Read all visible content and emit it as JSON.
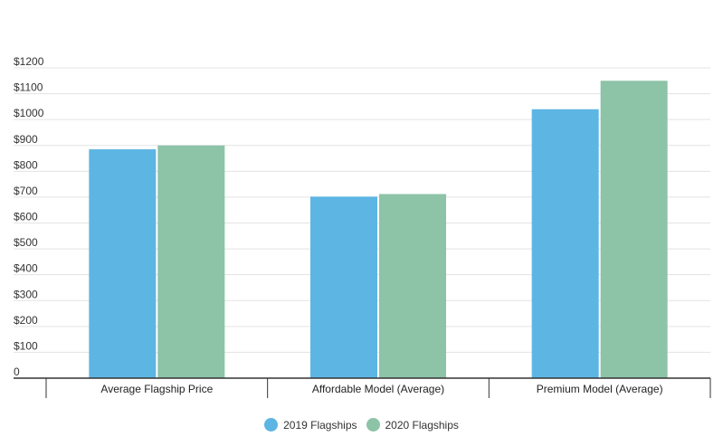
{
  "chart_data": {
    "type": "bar",
    "categories": [
      "Average Flagship Price",
      "Affordable Model (Average)",
      "Premium Model (Average)"
    ],
    "series": [
      {
        "name": "2019 Flagships",
        "values": [
          885,
          702,
          1040
        ],
        "color": "#5DB5E4"
      },
      {
        "name": "2020 Flagships",
        "values": [
          900,
          712,
          1150
        ],
        "color": "#8DC3A7"
      }
    ],
    "y_ticks": [
      "0",
      "$100",
      "$200",
      "$300",
      "$400",
      "$500",
      "$600",
      "$700",
      "$800",
      "$900",
      "$1000",
      "$1100",
      "$1200"
    ],
    "ylim": [
      0,
      1200
    ],
    "grid": true,
    "legend_position": "bottom"
  }
}
